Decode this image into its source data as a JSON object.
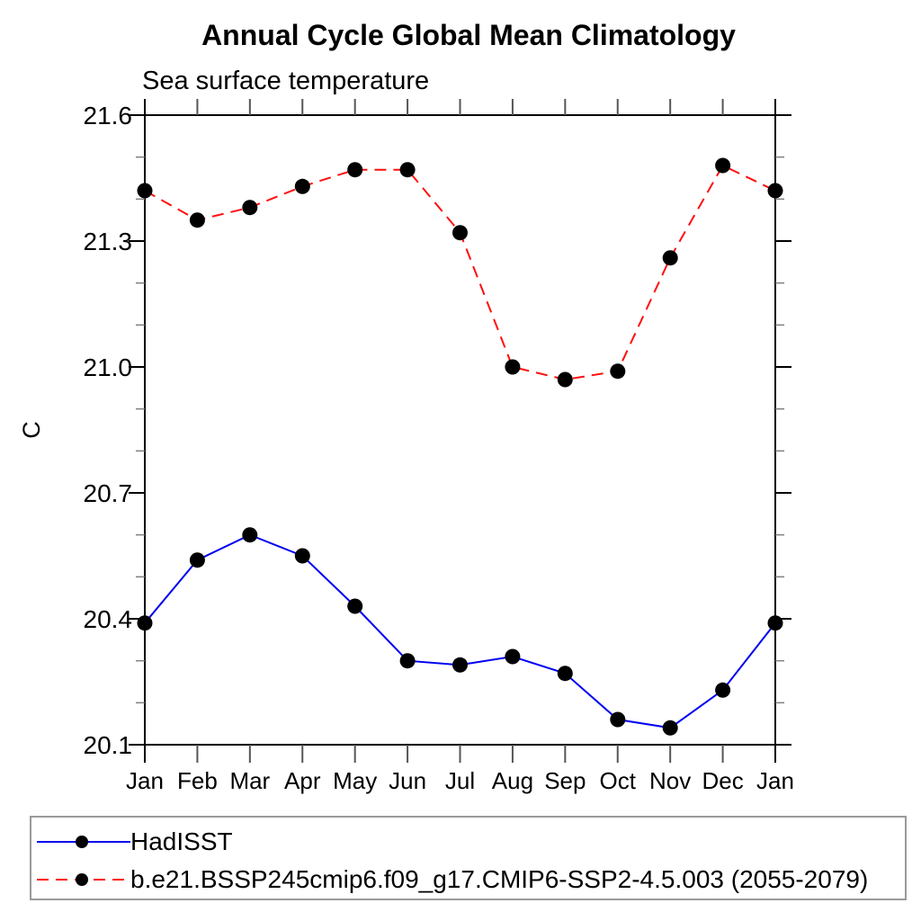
{
  "title": "Annual Cycle Global Mean Climatology",
  "subtitle": "Sea surface temperature",
  "chart_data": {
    "type": "line",
    "x_categories": [
      "Jan",
      "Feb",
      "Mar",
      "Apr",
      "May",
      "Jun",
      "Jul",
      "Aug",
      "Sep",
      "Oct",
      "Nov",
      "Dec",
      "Jan"
    ],
    "ylabel": "C",
    "ylim": [
      20.1,
      21.6
    ],
    "y_major_ticks": [
      20.1,
      20.4,
      20.7,
      21.0,
      21.3,
      21.6
    ],
    "y_minor_step": 0.1,
    "grid": false,
    "legend_position": "bottom-left-box",
    "series": [
      {
        "name": "HadISST",
        "color": "#0000f0",
        "line_style": "solid",
        "marker": "filled-circle",
        "marker_color": "#000000",
        "values": [
          20.39,
          20.54,
          20.6,
          20.55,
          20.43,
          20.3,
          20.29,
          20.31,
          20.27,
          20.16,
          20.14,
          20.23,
          20.39
        ]
      },
      {
        "name": "b.e21.BSSP245cmip6.f09_g17.CMIP6-SSP2-4.5.003 (2055-2079)",
        "color": "#ff0e0e",
        "line_style": "dashed",
        "marker": "filled-circle",
        "marker_color": "#000000",
        "values": [
          21.42,
          21.35,
          21.38,
          21.43,
          21.47,
          21.47,
          21.32,
          21.0,
          20.97,
          20.99,
          21.26,
          21.48,
          21.42
        ]
      }
    ],
    "axis_colors": {
      "frame": "#000000",
      "major_tick": "#000000",
      "minor_tick": "#808080",
      "month_tick": "#555555"
    }
  },
  "legend": {
    "border_color": "#9a9a9a"
  }
}
